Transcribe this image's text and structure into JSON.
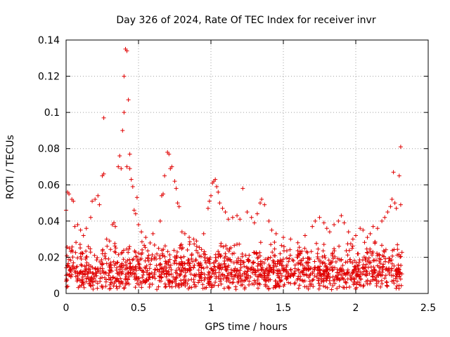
{
  "chart_data": {
    "type": "scatter",
    "title": "Day 326 of 2024, Rate Of TEC Index for receiver invr",
    "xlabel": "GPS time / hours",
    "ylabel": "ROTI / TECUs",
    "xlim": [
      0,
      2.5
    ],
    "ylim": [
      0,
      0.14
    ],
    "xticks": [
      0,
      0.5,
      1,
      1.5,
      2,
      2.5
    ],
    "xtick_labels": [
      "0",
      "0.5",
      "1",
      "1.5",
      "2",
      "2.5"
    ],
    "yticks": [
      0,
      0.02,
      0.04,
      0.06,
      0.08,
      0.1,
      0.12,
      0.14
    ],
    "ytick_labels": [
      "0",
      "0.02",
      "0.04",
      "0.06",
      "0.08",
      "0.1",
      "0.12",
      "0.14"
    ],
    "grid": true,
    "marker": "+",
    "color": "#e00000",
    "series": [
      {
        "name": "ROTI",
        "points": [
          [
            0.0,
            0.046
          ],
          [
            0.01,
            0.056
          ],
          [
            0.02,
            0.055
          ],
          [
            0.04,
            0.052
          ],
          [
            0.05,
            0.051
          ],
          [
            0.06,
            0.037
          ],
          [
            0.08,
            0.038
          ],
          [
            0.1,
            0.035
          ],
          [
            0.12,
            0.032
          ],
          [
            0.14,
            0.036
          ],
          [
            0.17,
            0.042
          ],
          [
            0.18,
            0.051
          ],
          [
            0.2,
            0.052
          ],
          [
            0.22,
            0.054
          ],
          [
            0.23,
            0.049
          ],
          [
            0.25,
            0.065
          ],
          [
            0.26,
            0.066
          ],
          [
            0.26,
            0.097
          ],
          [
            0.28,
            0.03
          ],
          [
            0.3,
            0.029
          ],
          [
            0.32,
            0.038
          ],
          [
            0.33,
            0.039
          ],
          [
            0.34,
            0.037
          ],
          [
            0.36,
            0.07
          ],
          [
            0.37,
            0.076
          ],
          [
            0.38,
            0.069
          ],
          [
            0.39,
            0.09
          ],
          [
            0.4,
            0.1
          ],
          [
            0.4,
            0.12
          ],
          [
            0.41,
            0.135
          ],
          [
            0.42,
            0.134
          ],
          [
            0.42,
            0.07
          ],
          [
            0.43,
            0.107
          ],
          [
            0.44,
            0.077
          ],
          [
            0.44,
            0.069
          ],
          [
            0.45,
            0.063
          ],
          [
            0.46,
            0.059
          ],
          [
            0.47,
            0.046
          ],
          [
            0.48,
            0.044
          ],
          [
            0.49,
            0.053
          ],
          [
            0.5,
            0.038
          ],
          [
            0.52,
            0.034
          ],
          [
            0.55,
            0.031
          ],
          [
            0.6,
            0.033
          ],
          [
            0.65,
            0.04
          ],
          [
            0.66,
            0.054
          ],
          [
            0.67,
            0.055
          ],
          [
            0.68,
            0.065
          ],
          [
            0.7,
            0.078
          ],
          [
            0.71,
            0.077
          ],
          [
            0.72,
            0.069
          ],
          [
            0.73,
            0.07
          ],
          [
            0.75,
            0.062
          ],
          [
            0.76,
            0.058
          ],
          [
            0.77,
            0.05
          ],
          [
            0.78,
            0.048
          ],
          [
            0.8,
            0.034
          ],
          [
            0.82,
            0.033
          ],
          [
            0.85,
            0.031
          ],
          [
            0.88,
            0.03
          ],
          [
            0.9,
            0.029
          ],
          [
            0.95,
            0.033
          ],
          [
            0.98,
            0.047
          ],
          [
            0.99,
            0.051
          ],
          [
            1.0,
            0.054
          ],
          [
            1.01,
            0.061
          ],
          [
            1.02,
            0.062
          ],
          [
            1.03,
            0.063
          ],
          [
            1.04,
            0.059
          ],
          [
            1.05,
            0.056
          ],
          [
            1.06,
            0.05
          ],
          [
            1.08,
            0.047
          ],
          [
            1.1,
            0.045
          ],
          [
            1.12,
            0.041
          ],
          [
            1.15,
            0.042
          ],
          [
            1.18,
            0.043
          ],
          [
            1.2,
            0.041
          ],
          [
            1.22,
            0.058
          ],
          [
            1.25,
            0.045
          ],
          [
            1.28,
            0.042
          ],
          [
            1.3,
            0.039
          ],
          [
            1.32,
            0.044
          ],
          [
            1.34,
            0.05
          ],
          [
            1.35,
            0.052
          ],
          [
            1.37,
            0.049
          ],
          [
            1.4,
            0.04
          ],
          [
            1.42,
            0.035
          ],
          [
            1.45,
            0.033
          ],
          [
            1.5,
            0.031
          ],
          [
            1.55,
            0.03
          ],
          [
            1.6,
            0.028
          ],
          [
            1.65,
            0.032
          ],
          [
            1.7,
            0.037
          ],
          [
            1.72,
            0.04
          ],
          [
            1.75,
            0.042
          ],
          [
            1.78,
            0.039
          ],
          [
            1.8,
            0.036
          ],
          [
            1.82,
            0.034
          ],
          [
            1.85,
            0.038
          ],
          [
            1.88,
            0.04
          ],
          [
            1.9,
            0.043
          ],
          [
            1.92,
            0.039
          ],
          [
            1.95,
            0.034
          ],
          [
            1.98,
            0.03
          ],
          [
            2.0,
            0.032
          ],
          [
            2.03,
            0.036
          ],
          [
            2.05,
            0.035
          ],
          [
            2.08,
            0.031
          ],
          [
            2.1,
            0.033
          ],
          [
            2.12,
            0.037
          ],
          [
            2.15,
            0.036
          ],
          [
            2.18,
            0.04
          ],
          [
            2.2,
            0.042
          ],
          [
            2.22,
            0.045
          ],
          [
            2.24,
            0.048
          ],
          [
            2.25,
            0.052
          ],
          [
            2.26,
            0.067
          ],
          [
            2.27,
            0.05
          ],
          [
            2.28,
            0.047
          ],
          [
            2.3,
            0.065
          ],
          [
            2.31,
            0.081
          ],
          [
            2.31,
            0.049
          ]
        ]
      }
    ],
    "dense_band": {
      "x_range": [
        0,
        2.32
      ],
      "y_range": [
        0.002,
        0.03
      ],
      "description_values": "many points between 0.002 and 0.03 ROTI across the time span"
    }
  }
}
